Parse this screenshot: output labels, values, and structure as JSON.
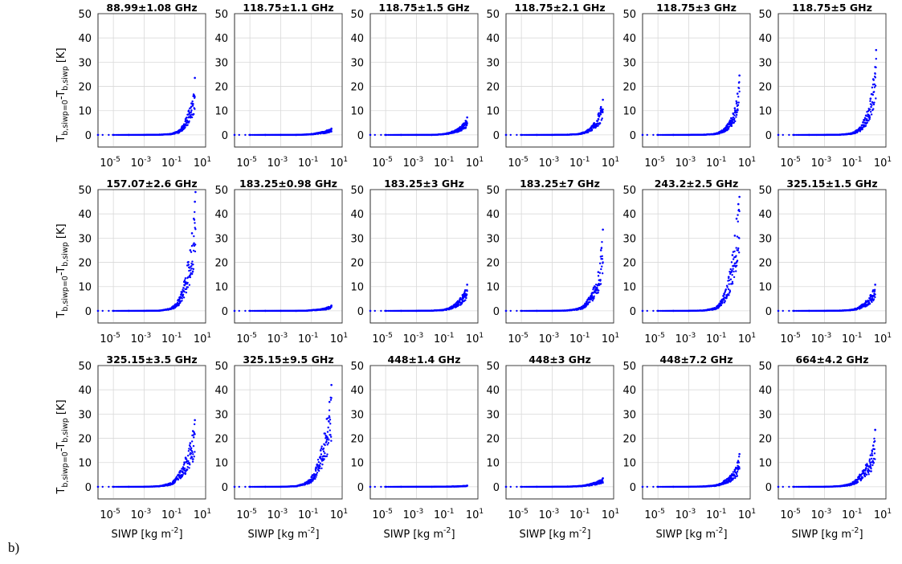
{
  "figure_label": "b)",
  "chart_data": {
    "type": "scatter",
    "layout": {
      "rows": 3,
      "cols": 6
    },
    "xscale": "log",
    "xlim": [
      1e-06,
      10
    ],
    "ylim": [
      -5,
      50
    ],
    "xticks": [
      1e-05,
      0.001,
      0.1,
      10
    ],
    "xtick_labels": [
      {
        "base": "10",
        "exp": "-5"
      },
      {
        "base": "10",
        "exp": "-3"
      },
      {
        "base": "10",
        "exp": "-1"
      },
      {
        "base": "10",
        "exp": "1"
      }
    ],
    "yticks": [
      0,
      10,
      20,
      30,
      40,
      50
    ],
    "grid": true,
    "marker_color": "#0000ff",
    "xlabel": {
      "main": "SIWP [kg m",
      "sup": "-2",
      "end": "]"
    },
    "ylabel": {
      "T": "T",
      "sub1": "b,siwp=0",
      "minus": "-T",
      "sub2": "b,siwp",
      "unit": " [K]"
    },
    "panels": [
      {
        "title": "88.99±1.08 GHz",
        "xlabels": false,
        "points": [
          [
            1e-06,
            0
          ],
          [
            1e-05,
            0
          ],
          [
            0.0001,
            0
          ],
          [
            0.001,
            0
          ],
          [
            0.01,
            0.1
          ],
          [
            0.05,
            0.4
          ],
          [
            0.1,
            1.0
          ],
          [
            0.2,
            2.0
          ],
          [
            0.3,
            3.5
          ],
          [
            0.5,
            6.5
          ],
          [
            0.8,
            10
          ],
          [
            1.2,
            13
          ],
          [
            1.6,
            16
          ],
          [
            2.0,
            23.5
          ]
        ]
      },
      {
        "title": "118.75±1.1 GHz",
        "xlabels": false,
        "points": [
          [
            1e-06,
            0
          ],
          [
            1e-05,
            0
          ],
          [
            0.0001,
            0
          ],
          [
            0.001,
            0
          ],
          [
            0.01,
            0
          ],
          [
            0.05,
            0.2
          ],
          [
            0.1,
            0.4
          ],
          [
            0.2,
            0.7
          ],
          [
            0.5,
            1.2
          ],
          [
            1.0,
            1.8
          ],
          [
            2.0,
            2.6
          ]
        ]
      },
      {
        "title": "118.75±1.5 GHz",
        "xlabels": false,
        "points": [
          [
            1e-06,
            0
          ],
          [
            1e-05,
            0
          ],
          [
            0.0001,
            0
          ],
          [
            0.001,
            0
          ],
          [
            0.01,
            0
          ],
          [
            0.05,
            0.3
          ],
          [
            0.1,
            0.7
          ],
          [
            0.2,
            1.3
          ],
          [
            0.5,
            2.5
          ],
          [
            1.0,
            4.2
          ],
          [
            1.6,
            5.8
          ],
          [
            2.0,
            7.2
          ]
        ]
      },
      {
        "title": "118.75±2.1 GHz",
        "xlabels": false,
        "points": [
          [
            1e-06,
            0
          ],
          [
            1e-05,
            0
          ],
          [
            0.0001,
            0
          ],
          [
            0.001,
            0
          ],
          [
            0.01,
            0.1
          ],
          [
            0.05,
            0.4
          ],
          [
            0.1,
            1.0
          ],
          [
            0.2,
            2.0
          ],
          [
            0.5,
            4.5
          ],
          [
            1.0,
            8.5
          ],
          [
            1.5,
            11.5
          ],
          [
            2.0,
            14.5
          ]
        ]
      },
      {
        "title": "118.75±3 GHz",
        "xlabels": false,
        "points": [
          [
            1e-06,
            0
          ],
          [
            1e-05,
            0
          ],
          [
            0.0001,
            0
          ],
          [
            0.001,
            0
          ],
          [
            0.01,
            0.1
          ],
          [
            0.05,
            0.5
          ],
          [
            0.1,
            1.2
          ],
          [
            0.2,
            2.5
          ],
          [
            0.5,
            6
          ],
          [
            1.0,
            11
          ],
          [
            1.5,
            17
          ],
          [
            2.0,
            24.5
          ]
        ]
      },
      {
        "title": "118.75±5 GHz",
        "xlabels": true,
        "points": [
          [
            1e-06,
            0
          ],
          [
            1e-05,
            0
          ],
          [
            0.0001,
            0
          ],
          [
            0.001,
            0
          ],
          [
            0.01,
            0.1
          ],
          [
            0.05,
            0.6
          ],
          [
            0.1,
            1.5
          ],
          [
            0.2,
            3
          ],
          [
            0.5,
            8
          ],
          [
            1.0,
            15
          ],
          [
            1.5,
            23
          ],
          [
            2.0,
            28
          ],
          [
            2.3,
            35
          ]
        ]
      },
      {
        "title": "157.07±2.6 GHz",
        "xlabels": true,
        "points": [
          [
            1e-06,
            0
          ],
          [
            1e-05,
            0
          ],
          [
            0.0001,
            0
          ],
          [
            0.001,
            0
          ],
          [
            0.01,
            0.1
          ],
          [
            0.05,
            1
          ],
          [
            0.1,
            2.5
          ],
          [
            0.2,
            5.5
          ],
          [
            0.4,
            12
          ],
          [
            0.7,
            20
          ],
          [
            1.0,
            25
          ],
          [
            1.3,
            32
          ],
          [
            1.7,
            38
          ],
          [
            2.0,
            45
          ],
          [
            2.2,
            49
          ]
        ]
      },
      {
        "title": "183.25±0.98 GHz",
        "xlabels": true,
        "points": [
          [
            1e-06,
            0
          ],
          [
            1e-05,
            0
          ],
          [
            0.0001,
            0
          ],
          [
            0.001,
            0
          ],
          [
            0.01,
            0
          ],
          [
            0.05,
            0.1
          ],
          [
            0.1,
            0.3
          ],
          [
            0.5,
            0.8
          ],
          [
            1.0,
            1.3
          ],
          [
            2.0,
            2.2
          ]
        ]
      },
      {
        "title": "183.25±3 GHz",
        "xlabels": true,
        "points": [
          [
            1e-06,
            0
          ],
          [
            1e-05,
            0
          ],
          [
            0.0001,
            0
          ],
          [
            0.001,
            0
          ],
          [
            0.01,
            0.1
          ],
          [
            0.05,
            0.4
          ],
          [
            0.1,
            0.9
          ],
          [
            0.2,
            1.8
          ],
          [
            0.5,
            4
          ],
          [
            1.0,
            6.5
          ],
          [
            1.5,
            8.5
          ],
          [
            2.0,
            10.8
          ]
        ]
      },
      {
        "title": "183.25±7 GHz",
        "xlabels": true,
        "points": [
          [
            1e-06,
            0
          ],
          [
            1e-05,
            0
          ],
          [
            0.0001,
            0
          ],
          [
            0.001,
            0
          ],
          [
            0.01,
            0.2
          ],
          [
            0.05,
            1
          ],
          [
            0.1,
            2
          ],
          [
            0.2,
            4.5
          ],
          [
            0.5,
            9.5
          ],
          [
            1.0,
            16
          ],
          [
            1.5,
            25
          ],
          [
            2.0,
            33.5
          ]
        ]
      },
      {
        "title": "243.2±2.5 GHz",
        "xlabels": true,
        "points": [
          [
            1e-06,
            0
          ],
          [
            1e-05,
            0
          ],
          [
            0.0001,
            0
          ],
          [
            0.001,
            0
          ],
          [
            0.01,
            0.2
          ],
          [
            0.05,
            1.2
          ],
          [
            0.1,
            3
          ],
          [
            0.2,
            7
          ],
          [
            0.4,
            14
          ],
          [
            0.7,
            23
          ],
          [
            1.0,
            31
          ],
          [
            1.3,
            38
          ],
          [
            1.7,
            44
          ],
          [
            2.0,
            47
          ]
        ]
      },
      {
        "title": "325.15±1.5 GHz",
        "xlabels": true,
        "points": [
          [
            1e-06,
            0
          ],
          [
            1e-05,
            0
          ],
          [
            0.0001,
            0
          ],
          [
            0.001,
            0
          ],
          [
            0.01,
            0.1
          ],
          [
            0.05,
            0.4
          ],
          [
            0.1,
            0.9
          ],
          [
            0.2,
            1.8
          ],
          [
            0.5,
            4
          ],
          [
            1.0,
            6.5
          ],
          [
            1.5,
            8.5
          ],
          [
            2.0,
            10.8
          ]
        ]
      },
      {
        "title": "325.15±3.5 GHz",
        "xlabels": true,
        "points": [
          [
            1e-06,
            0
          ],
          [
            1e-05,
            0
          ],
          [
            0.0001,
            0
          ],
          [
            0.001,
            0
          ],
          [
            0.01,
            0.3
          ],
          [
            0.05,
            1.5
          ],
          [
            0.1,
            3
          ],
          [
            0.2,
            6
          ],
          [
            0.5,
            12
          ],
          [
            1.0,
            18
          ],
          [
            1.5,
            23
          ],
          [
            2.0,
            27.5
          ]
        ]
      },
      {
        "title": "325.15±9.5 GHz",
        "xlabels": true,
        "points": [
          [
            1e-06,
            0
          ],
          [
            1e-05,
            0
          ],
          [
            0.0001,
            0
          ],
          [
            0.001,
            0
          ],
          [
            0.01,
            0.3
          ],
          [
            0.05,
            2
          ],
          [
            0.1,
            4
          ],
          [
            0.2,
            8
          ],
          [
            0.4,
            15
          ],
          [
            0.7,
            22
          ],
          [
            1.0,
            28
          ],
          [
            1.5,
            35
          ],
          [
            2.0,
            42
          ]
        ]
      },
      {
        "title": "448±1.4 GHz",
        "xlabels": true,
        "points": [
          [
            1e-06,
            0
          ],
          [
            1e-05,
            0
          ],
          [
            0.0001,
            0
          ],
          [
            0.001,
            0
          ],
          [
            0.01,
            0
          ],
          [
            0.1,
            0.1
          ],
          [
            0.5,
            0.2
          ],
          [
            1.0,
            0.3
          ],
          [
            2.0,
            0.5
          ]
        ]
      },
      {
        "title": "448±3 GHz",
        "xlabels": true,
        "points": [
          [
            1e-06,
            0
          ],
          [
            1e-05,
            0
          ],
          [
            0.0001,
            0
          ],
          [
            0.001,
            0
          ],
          [
            0.01,
            0.1
          ],
          [
            0.05,
            0.3
          ],
          [
            0.1,
            0.5
          ],
          [
            0.2,
            0.9
          ],
          [
            0.5,
            1.6
          ],
          [
            1.0,
            2.3
          ],
          [
            2.0,
            3.5
          ]
        ]
      },
      {
        "title": "448±7.2 GHz",
        "xlabels": true,
        "points": [
          [
            1e-06,
            0
          ],
          [
            1e-05,
            0
          ],
          [
            0.0001,
            0
          ],
          [
            0.001,
            0
          ],
          [
            0.01,
            0.2
          ],
          [
            0.05,
            0.6
          ],
          [
            0.1,
            1.2
          ],
          [
            0.2,
            2.4
          ],
          [
            0.5,
            4.5
          ],
          [
            1.0,
            7
          ],
          [
            1.5,
            10
          ],
          [
            2.0,
            13.5
          ]
        ]
      },
      {
        "title": "664±4.2 GHz",
        "xlabels": true,
        "points": [
          [
            1e-06,
            0
          ],
          [
            1e-05,
            0
          ],
          [
            0.0001,
            0
          ],
          [
            0.001,
            0
          ],
          [
            0.01,
            0.3
          ],
          [
            0.05,
            1.3
          ],
          [
            0.1,
            2.6
          ],
          [
            0.2,
            5
          ],
          [
            0.5,
            9
          ],
          [
            1.0,
            13
          ],
          [
            1.5,
            17
          ],
          [
            2.0,
            23.5
          ]
        ]
      }
    ]
  }
}
